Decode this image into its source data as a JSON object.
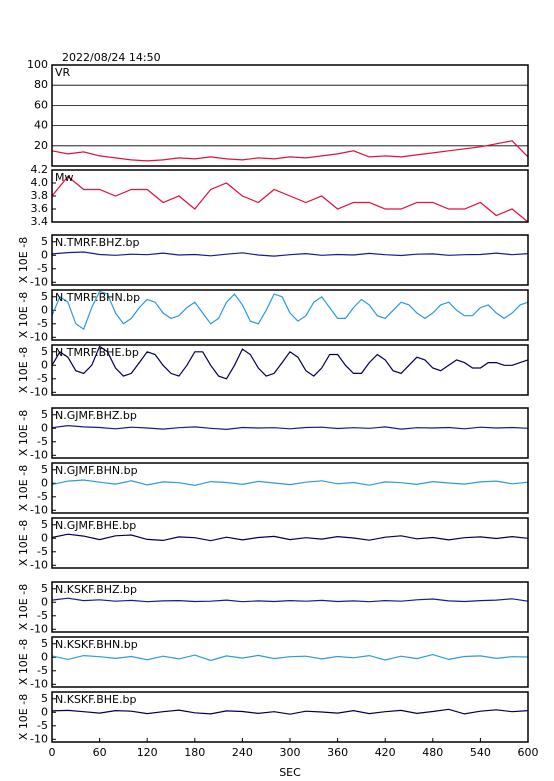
{
  "chart_data": {
    "type": "line",
    "title": "2022/08/24 14:50",
    "xlabel": "SEC",
    "xlim": [
      0,
      600
    ],
    "xticks": [
      0,
      60,
      120,
      180,
      240,
      300,
      360,
      420,
      480,
      540,
      600
    ],
    "panels": [
      {
        "name": "VR",
        "color": "#e0103c",
        "ylim": [
          0,
          100
        ],
        "yticks": [
          20,
          40,
          60,
          80,
          100
        ],
        "grid": true,
        "x": [
          0,
          20,
          40,
          60,
          80,
          100,
          120,
          140,
          160,
          180,
          200,
          220,
          240,
          260,
          280,
          300,
          320,
          340,
          360,
          380,
          400,
          420,
          440,
          460,
          480,
          500,
          520,
          540,
          560,
          580,
          600
        ],
        "values": [
          15,
          12,
          14,
          10,
          8,
          6,
          5,
          6,
          8,
          7,
          9,
          7,
          6,
          8,
          7,
          9,
          8,
          10,
          12,
          15,
          9,
          10,
          9,
          11,
          13,
          15,
          17,
          19,
          22,
          25,
          9
        ]
      },
      {
        "name": "Mw",
        "color": "#e0103c",
        "ylim": [
          3.4,
          4.2
        ],
        "yticks": [
          4.2,
          {
            "value": 4,
            "label": "4.0"
          },
          3.8,
          3.6,
          3.4
        ],
        "grid": false,
        "x": [
          0,
          20,
          40,
          60,
          80,
          100,
          120,
          140,
          160,
          180,
          200,
          220,
          240,
          260,
          280,
          300,
          320,
          340,
          360,
          380,
          400,
          420,
          440,
          460,
          480,
          500,
          520,
          540,
          560,
          580,
          600
        ],
        "values": [
          3.8,
          4.1,
          3.9,
          3.9,
          3.8,
          3.9,
          3.9,
          3.7,
          3.8,
          3.6,
          3.9,
          4.0,
          3.8,
          3.7,
          3.9,
          3.8,
          3.7,
          3.8,
          3.6,
          3.7,
          3.7,
          3.6,
          3.6,
          3.7,
          3.7,
          3.6,
          3.6,
          3.7,
          3.5,
          3.6,
          3.4
        ]
      },
      {
        "name": "N.TMRF.BHZ.bp",
        "ylabel": "X 10E -8",
        "color": "#1a1a8c",
        "ylim": [
          -11,
          7.5
        ],
        "yticks": [
          5,
          0,
          -5,
          -10
        ],
        "grid": false,
        "x": [
          0,
          20,
          40,
          60,
          80,
          100,
          120,
          140,
          160,
          180,
          200,
          220,
          240,
          260,
          280,
          300,
          320,
          340,
          360,
          380,
          400,
          420,
          440,
          460,
          480,
          500,
          520,
          540,
          560,
          580,
          600
        ],
        "values": [
          0.5,
          1,
          1.2,
          0.3,
          0,
          0.4,
          0.2,
          0.8,
          0.1,
          0.3,
          -0.2,
          0.4,
          0.9,
          0.1,
          -0.3,
          0.2,
          0.6,
          0,
          0.3,
          0.1,
          0.7,
          0.2,
          -0.1,
          0.4,
          0.5,
          0,
          0.2,
          0.3,
          0.8,
          0.2,
          0.6
        ]
      },
      {
        "name": "N.TMRF.BHN.bp",
        "ylabel": "X 10E -8",
        "color": "#2a9be0",
        "ylim": [
          -11,
          7.5
        ],
        "yticks": [
          5,
          0,
          -5,
          -10
        ],
        "grid": false,
        "x": [
          0,
          10,
          20,
          30,
          40,
          50,
          60,
          70,
          80,
          90,
          100,
          110,
          120,
          130,
          140,
          150,
          160,
          170,
          180,
          190,
          200,
          210,
          220,
          230,
          240,
          250,
          260,
          270,
          280,
          290,
          300,
          310,
          320,
          330,
          340,
          350,
          360,
          370,
          380,
          390,
          400,
          410,
          420,
          430,
          440,
          450,
          460,
          470,
          480,
          490,
          500,
          510,
          520,
          530,
          540,
          550,
          560,
          570,
          580,
          590,
          600
        ],
        "values": [
          -2,
          5,
          3,
          -5,
          -7,
          1,
          7,
          6,
          -1,
          -5,
          -3,
          1,
          4,
          3,
          -1,
          -3,
          -2,
          1,
          3,
          -1,
          -5,
          -3,
          3,
          6,
          2,
          -4,
          -5,
          0,
          6,
          5,
          -1,
          -4,
          -2,
          3,
          5,
          1,
          -3,
          -3,
          1,
          4,
          2,
          -2,
          -3,
          0,
          3,
          2,
          -1,
          -3,
          -1,
          2,
          3,
          0,
          -2,
          -2,
          1,
          2,
          -1,
          -3,
          -1,
          2,
          3
        ]
      },
      {
        "name": "N.TMRF.BHE.bp",
        "ylabel": "X 10E -8",
        "color": "#000050",
        "ylim": [
          -11,
          7.5
        ],
        "yticks": [
          5,
          0,
          -5,
          -10
        ],
        "grid": false,
        "x": [
          0,
          10,
          20,
          30,
          40,
          50,
          60,
          70,
          80,
          90,
          100,
          110,
          120,
          130,
          140,
          150,
          160,
          170,
          180,
          190,
          200,
          210,
          220,
          230,
          240,
          250,
          260,
          270,
          280,
          290,
          300,
          310,
          320,
          330,
          340,
          350,
          360,
          370,
          380,
          390,
          400,
          410,
          420,
          430,
          440,
          450,
          460,
          470,
          480,
          490,
          500,
          510,
          520,
          530,
          540,
          550,
          560,
          570,
          580,
          590,
          600
        ],
        "values": [
          0,
          5,
          3,
          -2,
          -3,
          0,
          7,
          5,
          -1,
          -4,
          -3,
          1,
          5,
          4,
          0,
          -3,
          -4,
          0,
          5,
          5,
          0,
          -4,
          -5,
          0,
          6,
          4,
          -1,
          -4,
          -3,
          1,
          5,
          3,
          -2,
          -4,
          -1,
          4,
          4,
          0,
          -3,
          -3,
          1,
          4,
          2,
          -2,
          -3,
          0,
          3,
          2,
          -1,
          -2,
          0,
          2,
          1,
          -1,
          -1,
          1,
          1,
          0,
          0,
          1,
          2
        ]
      },
      {
        "name": "N.GJMF.BHZ.bp",
        "ylabel": "X 10E -8",
        "color": "#1a1a8c",
        "ylim": [
          -11,
          7.5
        ],
        "yticks": [
          5,
          0,
          -5,
          -10
        ],
        "grid": false,
        "x": [
          0,
          20,
          40,
          60,
          80,
          100,
          120,
          140,
          160,
          180,
          200,
          220,
          240,
          260,
          280,
          300,
          320,
          340,
          360,
          380,
          400,
          420,
          440,
          460,
          480,
          500,
          520,
          540,
          560,
          580,
          600
        ],
        "values": [
          0.2,
          1,
          0.5,
          0.3,
          -0.2,
          0.4,
          0.1,
          -0.3,
          0.2,
          0.5,
          0,
          -0.4,
          0.3,
          0.1,
          0.2,
          -0.2,
          0.3,
          0.4,
          -0.1,
          0.2,
          0,
          0.5,
          -0.3,
          0.2,
          0.1,
          0.3,
          -0.2,
          0.4,
          0.1,
          0.3,
          0
        ]
      },
      {
        "name": "N.GJMF.BHN.bp",
        "ylabel": "X 10E -8",
        "color": "#2a9be0",
        "ylim": [
          -11,
          7.5
        ],
        "yticks": [
          5,
          0,
          -5,
          -10
        ],
        "grid": false,
        "x": [
          0,
          20,
          40,
          60,
          80,
          100,
          120,
          140,
          160,
          180,
          200,
          220,
          240,
          260,
          280,
          300,
          320,
          340,
          360,
          380,
          400,
          420,
          440,
          460,
          480,
          500,
          520,
          540,
          560,
          580,
          600
        ],
        "values": [
          -0.5,
          0.8,
          1.2,
          0.4,
          -0.3,
          0.9,
          -0.6,
          0.5,
          0.2,
          -0.8,
          0.6,
          0.3,
          -0.4,
          0.7,
          0.1,
          -0.5,
          0.4,
          0.9,
          -0.2,
          0.3,
          -0.7,
          0.5,
          0.2,
          -0.4,
          0.6,
          0.1,
          -0.3,
          0.5,
          0.8,
          -0.2,
          0.4
        ]
      },
      {
        "name": "N.GJMF.BHE.bp",
        "ylabel": "X 10E -8",
        "color": "#000050",
        "ylim": [
          -11,
          7.5
        ],
        "yticks": [
          5,
          0,
          -5,
          -10
        ],
        "grid": false,
        "x": [
          0,
          20,
          40,
          60,
          80,
          100,
          120,
          140,
          160,
          180,
          200,
          220,
          240,
          260,
          280,
          300,
          320,
          340,
          360,
          380,
          400,
          420,
          440,
          460,
          480,
          500,
          520,
          540,
          560,
          580,
          600
        ],
        "values": [
          0.3,
          1.5,
          0.8,
          -0.5,
          0.9,
          1.2,
          -0.4,
          -0.8,
          0.5,
          0.2,
          -0.9,
          0.4,
          -0.6,
          0.3,
          0.7,
          -0.5,
          0.2,
          -0.3,
          0.6,
          0.1,
          -0.7,
          0.4,
          0.9,
          -0.2,
          0.3,
          -0.6,
          0.2,
          0.5,
          -0.1,
          0.6,
          0
        ]
      },
      {
        "name": "N.KSKF.BHZ.bp",
        "ylabel": "X 10E -8",
        "color": "#1a1a8c",
        "ylim": [
          -11,
          7.5
        ],
        "yticks": [
          5,
          0,
          -5,
          -10
        ],
        "grid": false,
        "x": [
          0,
          20,
          40,
          60,
          80,
          100,
          120,
          140,
          160,
          180,
          200,
          220,
          240,
          260,
          280,
          300,
          320,
          340,
          360,
          380,
          400,
          420,
          440,
          460,
          480,
          500,
          520,
          540,
          560,
          580,
          600
        ],
        "values": [
          0.8,
          1.5,
          0.6,
          0.9,
          0.4,
          0.7,
          0.2,
          0.5,
          0.6,
          0.3,
          0.4,
          0.8,
          0.2,
          0.5,
          0.3,
          0.6,
          0.4,
          0.7,
          0.3,
          0.5,
          0.2,
          0.6,
          0.4,
          0.9,
          1.2,
          0.5,
          0.3,
          0.6,
          0.8,
          1.3,
          0.4
        ]
      },
      {
        "name": "N.KSKF.BHN.bp",
        "ylabel": "X 10E -8",
        "color": "#2a9be0",
        "ylim": [
          -11,
          7.5
        ],
        "yticks": [
          5,
          0,
          -5,
          -10
        ],
        "grid": false,
        "x": [
          0,
          20,
          40,
          60,
          80,
          100,
          120,
          140,
          160,
          180,
          200,
          220,
          240,
          260,
          280,
          300,
          320,
          340,
          360,
          380,
          400,
          420,
          440,
          460,
          480,
          500,
          520,
          540,
          560,
          580,
          600
        ],
        "values": [
          0.5,
          -0.8,
          0.6,
          0.2,
          -0.4,
          0.3,
          -0.9,
          0.4,
          -0.6,
          0.8,
          -1.2,
          0.5,
          -0.3,
          0.7,
          -0.5,
          0.2,
          0.4,
          -0.6,
          0.3,
          -0.2,
          0.6,
          -1,
          0.4,
          -0.5,
          1,
          -0.8,
          0.3,
          0.5,
          -0.4,
          0.2,
          0.1
        ]
      },
      {
        "name": "N.KSKF.BHE.bp",
        "ylabel": "X 10E -8",
        "color": "#000050",
        "ylim": [
          -11,
          7.5
        ],
        "yticks": [
          5,
          0,
          -5,
          -10
        ],
        "grid": false,
        "x": [
          0,
          20,
          40,
          60,
          80,
          100,
          120,
          140,
          160,
          180,
          200,
          220,
          240,
          260,
          280,
          300,
          320,
          340,
          360,
          380,
          400,
          420,
          440,
          460,
          480,
          500,
          520,
          540,
          560,
          580,
          600
        ],
        "values": [
          0.5,
          0.7,
          0.2,
          -0.3,
          0.6,
          0.4,
          -0.5,
          0.2,
          0.8,
          -0.2,
          -0.6,
          0.5,
          0.3,
          -0.4,
          0.2,
          -0.7,
          0.4,
          0.1,
          -0.3,
          0.6,
          -0.5,
          0.2,
          0.7,
          -0.4,
          0.3,
          1.1,
          -0.6,
          0.4,
          0.9,
          0.2,
          0.6
        ]
      }
    ]
  }
}
